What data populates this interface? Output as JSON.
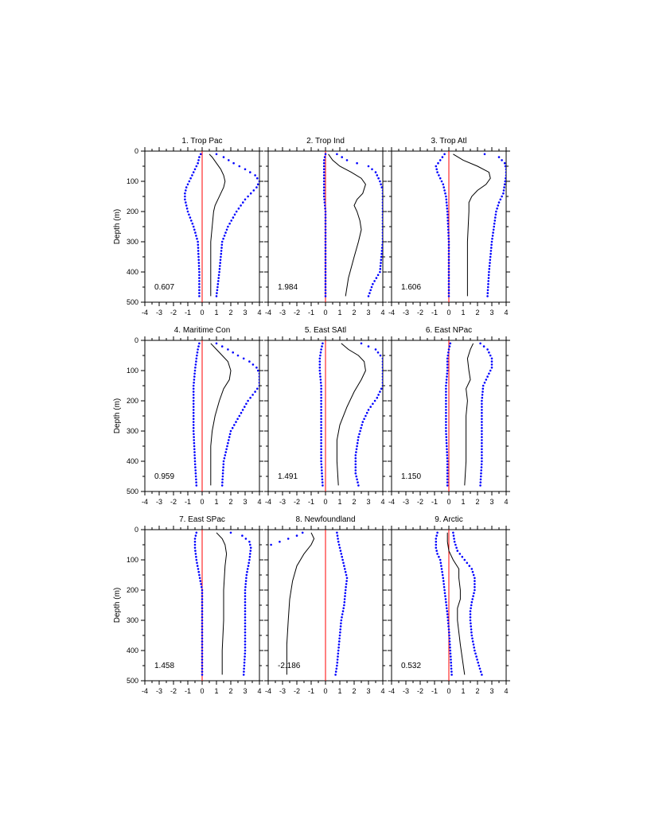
{
  "chart_data": {
    "type": "line",
    "xlim": [
      -4,
      4
    ],
    "ylim": [
      0,
      500
    ],
    "x_ticks": [
      -4,
      -3,
      -2,
      -1,
      0,
      1,
      2,
      3,
      4
    ],
    "y_ticks": [
      0,
      100,
      200,
      300,
      400,
      500
    ],
    "ylabel": "Depth (m)",
    "colors": {
      "mean": "#000000",
      "bounds": "#0000ff",
      "zero": "#ff0000"
    },
    "panels": [
      {
        "title": "1. Trop Pac",
        "value": "0.607",
        "mean": [
          [
            0.5,
            10
          ],
          [
            0.7,
            20
          ],
          [
            1.0,
            40
          ],
          [
            1.3,
            60
          ],
          [
            1.5,
            80
          ],
          [
            1.6,
            100
          ],
          [
            1.5,
            120
          ],
          [
            1.3,
            140
          ],
          [
            1.1,
            160
          ],
          [
            0.9,
            180
          ],
          [
            0.8,
            200
          ],
          [
            0.7,
            250
          ],
          [
            0.6,
            300
          ],
          [
            0.6,
            400
          ],
          [
            0.6,
            480
          ]
        ],
        "lower": [
          [
            -0.1,
            10
          ],
          [
            -0.2,
            20
          ],
          [
            -0.3,
            40
          ],
          [
            -0.5,
            60
          ],
          [
            -0.7,
            80
          ],
          [
            -0.9,
            100
          ],
          [
            -1.1,
            120
          ],
          [
            -1.2,
            140
          ],
          [
            -1.2,
            160
          ],
          [
            -1.1,
            180
          ],
          [
            -1.0,
            200
          ],
          [
            -0.6,
            250
          ],
          [
            -0.3,
            300
          ],
          [
            -0.2,
            400
          ],
          [
            -0.2,
            480
          ]
        ],
        "upper": [
          [
            1.0,
            10
          ],
          [
            1.5,
            20
          ],
          [
            2.2,
            40
          ],
          [
            3.0,
            60
          ],
          [
            3.7,
            80
          ],
          [
            4.0,
            100
          ],
          [
            3.8,
            120
          ],
          [
            3.4,
            140
          ],
          [
            3.0,
            160
          ],
          [
            2.7,
            180
          ],
          [
            2.4,
            200
          ],
          [
            1.8,
            250
          ],
          [
            1.4,
            300
          ],
          [
            1.2,
            400
          ],
          [
            1.0,
            480
          ]
        ]
      },
      {
        "title": "2. Trop Ind",
        "value": "1.984",
        "mean": [
          [
            0.2,
            10
          ],
          [
            0.5,
            30
          ],
          [
            1.0,
            50
          ],
          [
            1.8,
            70
          ],
          [
            2.5,
            90
          ],
          [
            2.8,
            110
          ],
          [
            2.6,
            140
          ],
          [
            2.2,
            160
          ],
          [
            2.0,
            180
          ],
          [
            2.2,
            200
          ],
          [
            2.4,
            230
          ],
          [
            2.5,
            260
          ],
          [
            2.3,
            300
          ],
          [
            2.0,
            350
          ],
          [
            1.6,
            420
          ],
          [
            1.4,
            480
          ]
        ],
        "lower": [
          [
            0.0,
            10
          ],
          [
            -0.1,
            30
          ],
          [
            -0.1,
            60
          ],
          [
            -0.1,
            100
          ],
          [
            -0.1,
            150
          ],
          [
            0.0,
            200
          ],
          [
            0.0,
            300
          ],
          [
            0.0,
            400
          ],
          [
            0.0,
            480
          ]
        ],
        "upper": [
          [
            0.8,
            10
          ],
          [
            1.5,
            30
          ],
          [
            2.2,
            40
          ],
          [
            3.0,
            50
          ],
          [
            3.5,
            70
          ],
          [
            3.8,
            100
          ],
          [
            4.0,
            130
          ],
          [
            4.0,
            160
          ],
          [
            4.0,
            200
          ],
          [
            4.0,
            300
          ],
          [
            3.8,
            400
          ],
          [
            3.3,
            440
          ],
          [
            3.0,
            480
          ]
        ]
      },
      {
        "title": "3. Trop Atl",
        "value": "1.606",
        "mean": [
          [
            0.3,
            10
          ],
          [
            1.0,
            30
          ],
          [
            2.0,
            50
          ],
          [
            2.8,
            70
          ],
          [
            2.9,
            90
          ],
          [
            2.6,
            110
          ],
          [
            2.0,
            130
          ],
          [
            1.6,
            150
          ],
          [
            1.4,
            170
          ],
          [
            1.4,
            200
          ],
          [
            1.3,
            300
          ],
          [
            1.3,
            400
          ],
          [
            1.3,
            480
          ]
        ],
        "lower": [
          [
            -0.3,
            10
          ],
          [
            -0.6,
            30
          ],
          [
            -0.9,
            50
          ],
          [
            -0.8,
            70
          ],
          [
            -0.6,
            90
          ],
          [
            -0.4,
            110
          ],
          [
            -0.2,
            150
          ],
          [
            -0.1,
            200
          ],
          [
            0.0,
            300
          ],
          [
            0.0,
            400
          ],
          [
            0.0,
            480
          ]
        ],
        "upper": [
          [
            2.5,
            10
          ],
          [
            3.5,
            20
          ],
          [
            3.9,
            40
          ],
          [
            4.0,
            60
          ],
          [
            4.0,
            80
          ],
          [
            3.8,
            140
          ],
          [
            3.5,
            170
          ],
          [
            3.3,
            200
          ],
          [
            3.0,
            300
          ],
          [
            2.8,
            400
          ],
          [
            2.7,
            480
          ]
        ]
      },
      {
        "title": "4. Maritime Con",
        "value": "0.959",
        "mean": [
          [
            0.6,
            10
          ],
          [
            1.0,
            30
          ],
          [
            1.4,
            50
          ],
          [
            1.8,
            70
          ],
          [
            2.0,
            100
          ],
          [
            1.9,
            130
          ],
          [
            1.5,
            160
          ],
          [
            1.2,
            200
          ],
          [
            0.9,
            250
          ],
          [
            0.7,
            300
          ],
          [
            0.6,
            350
          ],
          [
            0.6,
            400
          ],
          [
            0.6,
            480
          ]
        ],
        "lower": [
          [
            -0.2,
            10
          ],
          [
            -0.3,
            30
          ],
          [
            -0.4,
            60
          ],
          [
            -0.5,
            100
          ],
          [
            -0.6,
            150
          ],
          [
            -0.6,
            200
          ],
          [
            -0.6,
            300
          ],
          [
            -0.5,
            400
          ],
          [
            -0.4,
            480
          ]
        ],
        "upper": [
          [
            1.0,
            10
          ],
          [
            1.8,
            30
          ],
          [
            2.5,
            50
          ],
          [
            3.3,
            70
          ],
          [
            3.8,
            90
          ],
          [
            4.0,
            110
          ],
          [
            4.0,
            150
          ],
          [
            3.7,
            170
          ],
          [
            3.2,
            200
          ],
          [
            2.6,
            250
          ],
          [
            2.0,
            300
          ],
          [
            1.5,
            400
          ],
          [
            1.4,
            480
          ]
        ]
      },
      {
        "title": "5. East SAtl",
        "value": "1.491",
        "mean": [
          [
            1.1,
            10
          ],
          [
            1.6,
            30
          ],
          [
            2.3,
            50
          ],
          [
            2.7,
            70
          ],
          [
            2.8,
            100
          ],
          [
            2.5,
            130
          ],
          [
            2.0,
            170
          ],
          [
            1.5,
            220
          ],
          [
            1.0,
            280
          ],
          [
            0.8,
            330
          ],
          [
            0.8,
            400
          ],
          [
            0.9,
            480
          ]
        ],
        "lower": [
          [
            -0.2,
            10
          ],
          [
            -0.3,
            30
          ],
          [
            -0.4,
            60
          ],
          [
            -0.4,
            100
          ],
          [
            -0.3,
            150
          ],
          [
            -0.3,
            200
          ],
          [
            -0.3,
            300
          ],
          [
            -0.3,
            400
          ],
          [
            -0.2,
            480
          ]
        ],
        "upper": [
          [
            2.5,
            10
          ],
          [
            3.5,
            30
          ],
          [
            4.0,
            60
          ],
          [
            4.0,
            150
          ],
          [
            3.6,
            190
          ],
          [
            3.0,
            230
          ],
          [
            2.6,
            270
          ],
          [
            2.3,
            320
          ],
          [
            2.1,
            380
          ],
          [
            2.1,
            440
          ],
          [
            2.3,
            480
          ]
        ]
      },
      {
        "title": "6. East NPac",
        "value": "1.150",
        "mean": [
          [
            1.7,
            10
          ],
          [
            1.5,
            30
          ],
          [
            1.3,
            60
          ],
          [
            1.4,
            100
          ],
          [
            1.5,
            130
          ],
          [
            1.2,
            160
          ],
          [
            1.3,
            200
          ],
          [
            1.2,
            250
          ],
          [
            1.2,
            300
          ],
          [
            1.2,
            400
          ],
          [
            1.1,
            480
          ]
        ],
        "lower": [
          [
            0.1,
            10
          ],
          [
            0.0,
            30
          ],
          [
            -0.1,
            60
          ],
          [
            -0.1,
            100
          ],
          [
            -0.2,
            150
          ],
          [
            -0.2,
            200
          ],
          [
            -0.2,
            300
          ],
          [
            -0.1,
            400
          ],
          [
            -0.1,
            480
          ]
        ],
        "upper": [
          [
            2.2,
            10
          ],
          [
            2.7,
            30
          ],
          [
            3.0,
            60
          ],
          [
            3.0,
            90
          ],
          [
            2.7,
            120
          ],
          [
            2.4,
            150
          ],
          [
            2.3,
            200
          ],
          [
            2.3,
            300
          ],
          [
            2.3,
            400
          ],
          [
            2.2,
            480
          ]
        ]
      },
      {
        "title": "7. East SPac",
        "value": "1.458",
        "mean": [
          [
            1.0,
            10
          ],
          [
            1.4,
            30
          ],
          [
            1.6,
            50
          ],
          [
            1.7,
            80
          ],
          [
            1.6,
            120
          ],
          [
            1.5,
            200
          ],
          [
            1.5,
            300
          ],
          [
            1.4,
            400
          ],
          [
            1.4,
            480
          ]
        ],
        "lower": [
          [
            -0.4,
            10
          ],
          [
            -0.5,
            30
          ],
          [
            -0.5,
            60
          ],
          [
            -0.4,
            100
          ],
          [
            -0.2,
            150
          ],
          [
            0.0,
            200
          ],
          [
            0.0,
            300
          ],
          [
            0.0,
            400
          ],
          [
            0.0,
            480
          ]
        ],
        "upper": [
          [
            2.0,
            10
          ],
          [
            2.8,
            20
          ],
          [
            3.3,
            40
          ],
          [
            3.4,
            60
          ],
          [
            3.3,
            100
          ],
          [
            3.1,
            150
          ],
          [
            3.0,
            200
          ],
          [
            3.0,
            300
          ],
          [
            3.0,
            400
          ],
          [
            2.9,
            480
          ]
        ]
      },
      {
        "title": "8. Newfoundland",
        "value": "-2.186",
        "mean": [
          [
            -1.0,
            10
          ],
          [
            -0.8,
            30
          ],
          [
            -1.0,
            50
          ],
          [
            -1.5,
            80
          ],
          [
            -2.0,
            120
          ],
          [
            -2.3,
            170
          ],
          [
            -2.5,
            230
          ],
          [
            -2.6,
            300
          ],
          [
            -2.7,
            380
          ],
          [
            -2.7,
            480
          ]
        ],
        "lower": [
          [
            -1.6,
            10
          ],
          [
            -2.0,
            20
          ],
          [
            -2.6,
            30
          ],
          [
            -3.2,
            40
          ],
          [
            -3.8,
            50
          ],
          [
            -4.0,
            55
          ]
        ],
        "upper": [
          [
            0.8,
            10
          ],
          [
            0.9,
            40
          ],
          [
            1.1,
            80
          ],
          [
            1.3,
            120
          ],
          [
            1.5,
            160
          ],
          [
            1.4,
            200
          ],
          [
            1.3,
            250
          ],
          [
            1.1,
            300
          ],
          [
            1.0,
            350
          ],
          [
            0.9,
            400
          ],
          [
            0.8,
            450
          ],
          [
            0.7,
            480
          ]
        ]
      },
      {
        "title": "9. Arctic",
        "value": "0.532",
        "mean": [
          [
            -0.1,
            10
          ],
          [
            -0.1,
            40
          ],
          [
            0.0,
            70
          ],
          [
            0.3,
            100
          ],
          [
            0.7,
            130
          ],
          [
            0.7,
            160
          ],
          [
            0.8,
            200
          ],
          [
            0.8,
            230
          ],
          [
            0.6,
            260
          ],
          [
            0.6,
            300
          ],
          [
            0.8,
            380
          ],
          [
            1.1,
            480
          ]
        ],
        "lower": [
          [
            -0.8,
            10
          ],
          [
            -0.9,
            30
          ],
          [
            -0.9,
            60
          ],
          [
            -0.8,
            80
          ],
          [
            -0.6,
            100
          ],
          [
            -0.5,
            130
          ],
          [
            -0.4,
            160
          ],
          [
            -0.3,
            200
          ],
          [
            -0.2,
            240
          ],
          [
            -0.1,
            280
          ],
          [
            0.0,
            330
          ],
          [
            0.1,
            400
          ],
          [
            0.2,
            480
          ]
        ],
        "upper": [
          [
            0.3,
            10
          ],
          [
            0.4,
            40
          ],
          [
            0.6,
            70
          ],
          [
            1.1,
            100
          ],
          [
            1.6,
            130
          ],
          [
            1.8,
            160
          ],
          [
            1.8,
            200
          ],
          [
            1.6,
            240
          ],
          [
            1.5,
            270
          ],
          [
            1.5,
            300
          ],
          [
            1.6,
            350
          ],
          [
            1.8,
            400
          ],
          [
            2.1,
            450
          ],
          [
            2.3,
            480
          ]
        ]
      }
    ]
  }
}
